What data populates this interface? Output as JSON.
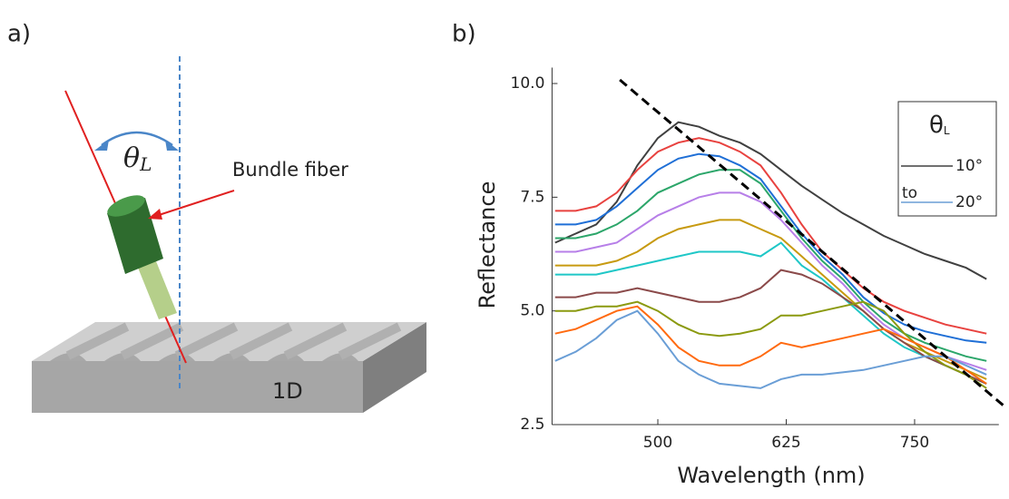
{
  "panel_a": {
    "label": "a)",
    "angle_symbol": "θ",
    "angle_subscript": "L",
    "fiber_label": "Bundle fiber",
    "sample_label": "1D"
  },
  "chart_data": {
    "type": "line",
    "panel_label": "b)",
    "x_label": "Wavelength (nm)",
    "y_label": "Reflectance",
    "x": [
      400,
      420,
      440,
      460,
      480,
      500,
      520,
      540,
      560,
      580,
      600,
      620,
      640,
      660,
      680,
      700,
      720,
      740,
      760,
      780,
      800,
      820
    ],
    "series": [
      {
        "name": "10°",
        "color": "#404040",
        "values": [
          6.5,
          6.7,
          6.9,
          7.4,
          8.2,
          8.8,
          9.15,
          9.05,
          8.85,
          8.7,
          8.45,
          8.1,
          7.75,
          7.45,
          7.15,
          6.9,
          6.65,
          6.45,
          6.25,
          6.1,
          5.95,
          5.7
        ]
      },
      {
        "color": "#e8423f",
        "values": [
          7.2,
          7.2,
          7.3,
          7.6,
          8.1,
          8.5,
          8.7,
          8.8,
          8.7,
          8.5,
          8.2,
          7.6,
          6.9,
          6.3,
          5.9,
          5.5,
          5.2,
          5.0,
          4.85,
          4.7,
          4.6,
          4.5
        ]
      },
      {
        "color": "#1f6fd6",
        "values": [
          6.9,
          6.9,
          7.0,
          7.3,
          7.7,
          8.1,
          8.35,
          8.45,
          8.4,
          8.2,
          7.9,
          7.3,
          6.7,
          6.2,
          5.8,
          5.3,
          4.95,
          4.7,
          4.55,
          4.45,
          4.35,
          4.3
        ]
      },
      {
        "color": "#2ca66a",
        "values": [
          6.6,
          6.6,
          6.7,
          6.9,
          7.2,
          7.6,
          7.8,
          8.0,
          8.1,
          8.1,
          7.8,
          7.2,
          6.6,
          6.1,
          5.7,
          5.2,
          4.8,
          4.5,
          4.3,
          4.15,
          4.0,
          3.9
        ]
      },
      {
        "color": "#b77fe8",
        "values": [
          6.3,
          6.3,
          6.4,
          6.5,
          6.8,
          7.1,
          7.3,
          7.5,
          7.6,
          7.6,
          7.4,
          7.0,
          6.5,
          6.0,
          5.6,
          5.1,
          4.7,
          4.4,
          4.2,
          4.0,
          3.85,
          3.7
        ]
      },
      {
        "color": "#c79a10",
        "values": [
          6.0,
          6.0,
          6.0,
          6.1,
          6.3,
          6.6,
          6.8,
          6.9,
          7.0,
          7.0,
          6.8,
          6.6,
          6.2,
          5.8,
          5.4,
          5.0,
          4.6,
          4.3,
          4.1,
          3.9,
          3.7,
          3.5
        ]
      },
      {
        "color": "#1fc7c7",
        "values": [
          5.8,
          5.8,
          5.8,
          5.9,
          6.0,
          6.1,
          6.2,
          6.3,
          6.3,
          6.3,
          6.2,
          6.5,
          6.0,
          5.7,
          5.3,
          4.9,
          4.5,
          4.2,
          4.0,
          3.8,
          3.6,
          3.4
        ]
      },
      {
        "color": "#8b4a4a",
        "values": [
          5.3,
          5.3,
          5.4,
          5.4,
          5.5,
          5.4,
          5.3,
          5.2,
          5.2,
          5.3,
          5.5,
          5.9,
          5.8,
          5.6,
          5.3,
          5.0,
          4.6,
          4.3,
          4.0,
          3.8,
          3.6,
          3.4
        ]
      },
      {
        "color": "#8b9a10",
        "values": [
          5.0,
          5.0,
          5.1,
          5.1,
          5.2,
          5.0,
          4.7,
          4.5,
          4.45,
          4.5,
          4.6,
          4.9,
          4.9,
          5.0,
          5.1,
          5.2,
          5.0,
          4.5,
          4.1,
          3.8,
          3.6,
          3.3
        ]
      },
      {
        "color": "#ff6a10",
        "values": [
          4.5,
          4.6,
          4.8,
          5.0,
          5.1,
          4.7,
          4.2,
          3.9,
          3.8,
          3.8,
          4.0,
          4.3,
          4.2,
          4.3,
          4.4,
          4.5,
          4.6,
          4.4,
          4.2,
          4.0,
          3.7,
          3.4
        ]
      },
      {
        "name": "20°",
        "color": "#6a9ed6",
        "values": [
          3.9,
          4.1,
          4.4,
          4.8,
          5.0,
          4.5,
          3.9,
          3.6,
          3.4,
          3.35,
          3.3,
          3.5,
          3.6,
          3.6,
          3.65,
          3.7,
          3.8,
          3.9,
          4.0,
          4.0,
          3.8,
          3.6
        ]
      }
    ],
    "xlim": [
      397,
      832
    ],
    "ylim": [
      2.5,
      10.35
    ],
    "xticks": [
      500,
      625,
      750
    ],
    "yticks": [
      2.5,
      {
        "value": 5,
        "label": "5.0"
      },
      {
        "value": 7.5,
        "label": "7.5"
      },
      {
        "value": 10,
        "label": "10.0"
      }
    ],
    "legend": {
      "title": "θ",
      "title_subscript": "L",
      "joiner": "to",
      "position": "upper right"
    },
    "trend_line": {
      "x": [
        463,
        837
      ],
      "y": [
        10.08,
        2.91
      ],
      "color": "#000000",
      "style": "dashed"
    }
  }
}
